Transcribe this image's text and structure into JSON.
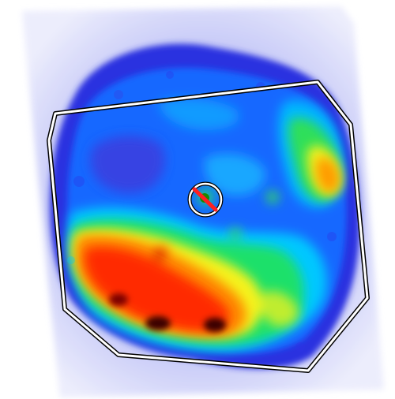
{
  "image": {
    "description_free": true,
    "colors": {
      "background": "#ffffff",
      "halo": "#b9bdf5",
      "outer_blue": "#2f35e6",
      "mid_blue": "#1565ff",
      "cyan": "#00c8ff",
      "green": "#22e06a",
      "yellow": "#f7f51f",
      "orange": "#ff8a00",
      "red": "#ff2a00",
      "dark_red": "#2a0000",
      "polygon_stroke": "#ffffff",
      "polygon_outline": "#000000",
      "marker_line": "#ff2020"
    },
    "overlays": {
      "region_polygon": {
        "shape": "octagon",
        "interactable": false
      },
      "center_marker": {
        "shape": "circle-with-slash",
        "interactable": false
      }
    }
  }
}
